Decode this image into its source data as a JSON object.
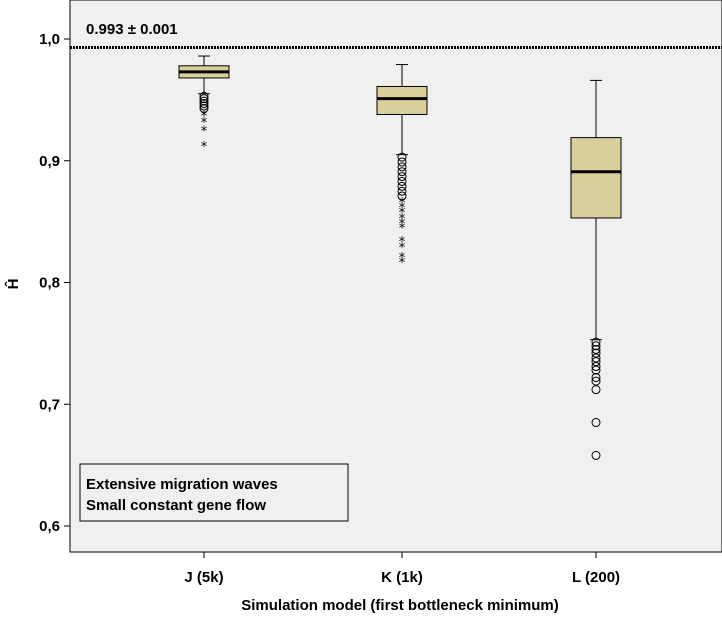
{
  "chart_data": {
    "type": "box",
    "title": "",
    "xlabel": "Simulation model (first bottleneck minimum)",
    "ylabel": "Ĥ",
    "ylim": [
      0.58,
      1.015
    ],
    "yticks": [
      {
        "value": 1.0,
        "label": "1,0"
      },
      {
        "value": 0.9,
        "label": "0,9"
      },
      {
        "value": 0.8,
        "label": "0,8"
      },
      {
        "value": 0.7,
        "label": "0,7"
      },
      {
        "value": 0.6,
        "label": "0,6"
      }
    ],
    "categories": [
      "J (5k)",
      "K (1k)",
      "L (200)"
    ],
    "reference_line": {
      "value": 0.993,
      "label": "0.993 ± 0.001"
    },
    "boxes": [
      {
        "category": "J (5k)",
        "whisker_low": 0.955,
        "q1": 0.968,
        "median": 0.973,
        "q3": 0.978,
        "whisker_high": 0.986,
        "outliers": [
          0.953,
          0.951,
          0.949,
          0.947,
          0.945,
          0.943
        ],
        "extremes": [
          0.937,
          0.932,
          0.925,
          0.912
        ]
      },
      {
        "category": "K (1k)",
        "whisker_low": 0.905,
        "q1": 0.938,
        "median": 0.951,
        "q3": 0.961,
        "whisker_high": 0.979,
        "outliers": [
          0.903,
          0.899,
          0.895,
          0.891,
          0.887,
          0.883,
          0.879,
          0.875,
          0.871
        ],
        "extremes": [
          0.866,
          0.862,
          0.858,
          0.853,
          0.849,
          0.845,
          0.834,
          0.829,
          0.821,
          0.817
        ]
      },
      {
        "category": "L (200)",
        "whisker_low": 0.753,
        "q1": 0.853,
        "median": 0.891,
        "q3": 0.919,
        "whisker_high": 0.966,
        "outliers": [
          0.751,
          0.748,
          0.745,
          0.742,
          0.738,
          0.735,
          0.731,
          0.728,
          0.722,
          0.719,
          0.712,
          0.685,
          0.658
        ],
        "extremes": []
      }
    ],
    "box_color": "#d9cf9b",
    "legend_text": [
      "Extensive migration waves",
      "Small constant gene flow"
    ],
    "legend_position": "bottom-left",
    "grid": false
  }
}
